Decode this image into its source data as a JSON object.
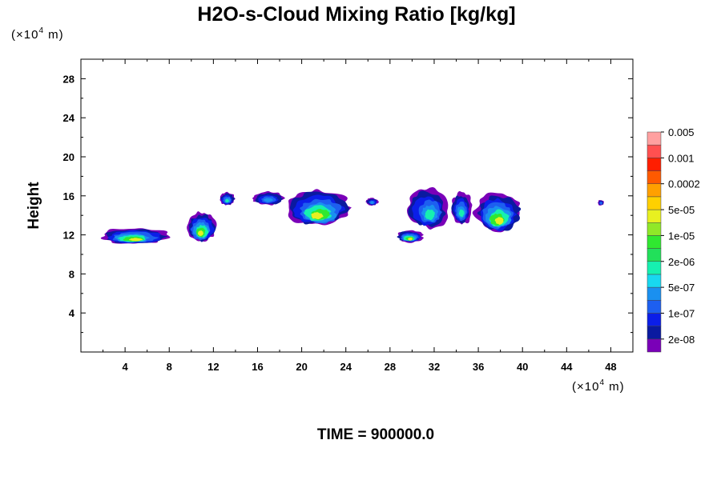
{
  "chart_data": {
    "type": "heatmap",
    "title": "H2O-s-Cloud Mixing Ratio [kg/kg]",
    "x_unit": {
      "prefix": "(×10",
      "exponent": "4",
      "suffix": " m)"
    },
    "y_unit": {
      "prefix": "(×10",
      "exponent": "4",
      "suffix": " m)"
    },
    "ylabel": "Height",
    "xlabel": "",
    "xlim": [
      0,
      50
    ],
    "ylim": [
      0,
      30
    ],
    "x_ticks": [
      4,
      8,
      12,
      16,
      20,
      24,
      28,
      32,
      36,
      40,
      44,
      48
    ],
    "y_ticks": [
      4,
      8,
      12,
      16,
      20,
      24,
      28
    ],
    "footer": "TIME = 900000.0",
    "colorbar": {
      "colors": [
        "#7a00b8",
        "#0a1aa0",
        "#0b1ee8",
        "#1d5ff0",
        "#1a90f0",
        "#18d8f0",
        "#16f0b0",
        "#22e05a",
        "#30e830",
        "#90e828",
        "#e8f020",
        "#ffd000",
        "#ffa000",
        "#ff5a00",
        "#ff1e00",
        "#ff5050",
        "#ffa0a0"
      ],
      "labels": [
        "2e-08",
        "1e-07",
        "5e-07",
        "2e-06",
        "1e-05",
        "5e-05",
        "0.0002",
        "0.001",
        "0.005"
      ]
    },
    "cloud_regions": [
      {
        "x": [
          1.5,
          8.0
        ],
        "y": [
          11.0,
          12.8
        ],
        "peak": "5e-05"
      },
      {
        "x": [
          9.5,
          12.3
        ],
        "y": [
          11.2,
          14.5
        ],
        "peak": "5e-05"
      },
      {
        "x": [
          12.5,
          14.0
        ],
        "y": [
          15.0,
          16.4
        ],
        "peak": "2e-06"
      },
      {
        "x": [
          15.5,
          18.5
        ],
        "y": [
          15.0,
          16.5
        ],
        "peak": "5e-07"
      },
      {
        "x": [
          18.5,
          24.5
        ],
        "y": [
          12.8,
          16.8
        ],
        "peak": "5e-05"
      },
      {
        "x": [
          25.8,
          27.0
        ],
        "y": [
          15.0,
          15.8
        ],
        "peak": "5e-07"
      },
      {
        "x": [
          28.5,
          31.0
        ],
        "y": [
          11.2,
          12.5
        ],
        "peak": "5e-05"
      },
      {
        "x": [
          29.5,
          33.5
        ],
        "y": [
          12.5,
          17.0
        ],
        "peak": "2e-06"
      },
      {
        "x": [
          33.5,
          35.5
        ],
        "y": [
          13.0,
          16.5
        ],
        "peak": "2e-06"
      },
      {
        "x": [
          35.5,
          40.0
        ],
        "y": [
          12.2,
          16.5
        ],
        "peak": "5e-05"
      },
      {
        "x": [
          46.8,
          47.4
        ],
        "y": [
          15.0,
          15.6
        ],
        "peak": "1e-07"
      }
    ]
  }
}
